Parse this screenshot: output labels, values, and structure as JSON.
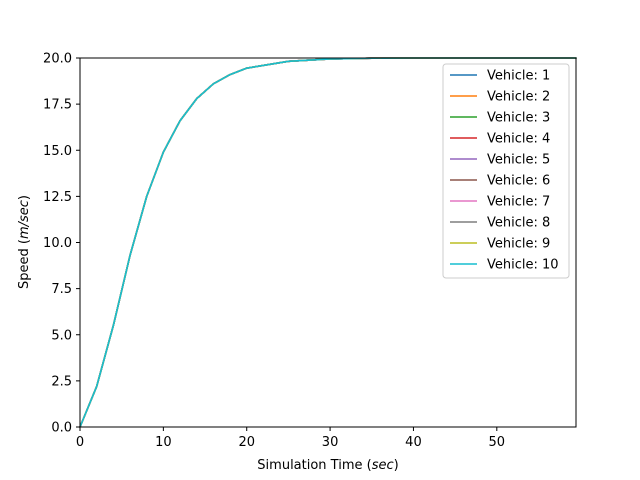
{
  "chart_data": {
    "type": "line",
    "title": "",
    "xlabel_prefix": "Simulation Time (",
    "xlabel_unit": "sec",
    "xlabel_suffix": ")",
    "ylabel_prefix": "Speed (",
    "ylabel_unit": "m/sec",
    "ylabel_suffix": ")",
    "xlim": [
      0,
      59.5
    ],
    "ylim": [
      0,
      20
    ],
    "xticks": [
      0,
      10,
      20,
      30,
      40,
      50
    ],
    "xtick_labels": [
      "0",
      "10",
      "20",
      "30",
      "40",
      "50"
    ],
    "yticks": [
      0,
      2.5,
      5,
      7.5,
      10,
      12.5,
      15,
      17.5,
      20
    ],
    "ytick_labels": [
      "0.0",
      "2.5",
      "5.0",
      "7.5",
      "10.0",
      "12.5",
      "15.0",
      "17.5",
      "20.0"
    ],
    "grid": false,
    "legend_position": "top-right",
    "x": [
      0,
      2,
      4,
      6,
      8,
      10,
      12,
      14,
      16,
      18,
      20,
      25,
      30,
      35,
      40,
      45,
      50,
      55,
      59.5
    ],
    "series": [
      {
        "name": "Vehicle: 1",
        "color": "#1f77b4",
        "values": [
          0,
          2.2,
          5.5,
          9.3,
          12.5,
          14.9,
          16.6,
          17.8,
          18.6,
          19.1,
          19.45,
          19.82,
          19.95,
          19.99,
          20,
          20,
          20,
          20,
          20
        ]
      },
      {
        "name": "Vehicle: 2",
        "color": "#ff7f0e",
        "values": [
          0,
          2.2,
          5.5,
          9.3,
          12.5,
          14.9,
          16.6,
          17.8,
          18.6,
          19.1,
          19.45,
          19.82,
          19.95,
          19.99,
          20,
          20,
          20,
          20,
          20
        ]
      },
      {
        "name": "Vehicle: 3",
        "color": "#2ca02c",
        "values": [
          0,
          2.2,
          5.5,
          9.3,
          12.5,
          14.9,
          16.6,
          17.8,
          18.6,
          19.1,
          19.45,
          19.82,
          19.95,
          19.99,
          20,
          20,
          20,
          20,
          20
        ]
      },
      {
        "name": "Vehicle: 4",
        "color": "#d62728",
        "values": [
          0,
          2.2,
          5.5,
          9.3,
          12.5,
          14.9,
          16.6,
          17.8,
          18.6,
          19.1,
          19.45,
          19.82,
          19.95,
          19.99,
          20,
          20,
          20,
          20,
          20
        ]
      },
      {
        "name": "Vehicle: 5",
        "color": "#9467bd",
        "values": [
          0,
          2.2,
          5.5,
          9.3,
          12.5,
          14.9,
          16.6,
          17.8,
          18.6,
          19.1,
          19.45,
          19.82,
          19.95,
          19.99,
          20,
          20,
          20,
          20,
          20
        ]
      },
      {
        "name": "Vehicle: 6",
        "color": "#8c564b",
        "values": [
          0,
          2.2,
          5.5,
          9.3,
          12.5,
          14.9,
          16.6,
          17.8,
          18.6,
          19.1,
          19.45,
          19.82,
          19.95,
          19.99,
          20,
          20,
          20,
          20,
          20
        ]
      },
      {
        "name": "Vehicle: 7",
        "color": "#e377c2",
        "values": [
          0,
          2.2,
          5.5,
          9.3,
          12.5,
          14.9,
          16.6,
          17.8,
          18.6,
          19.1,
          19.45,
          19.82,
          19.95,
          19.99,
          20,
          20,
          20,
          20,
          20
        ]
      },
      {
        "name": "Vehicle: 8",
        "color": "#7f7f7f",
        "values": [
          0,
          2.2,
          5.5,
          9.3,
          12.5,
          14.9,
          16.6,
          17.8,
          18.6,
          19.1,
          19.45,
          19.82,
          19.95,
          19.99,
          20,
          20,
          20,
          20,
          20
        ]
      },
      {
        "name": "Vehicle: 9",
        "color": "#bcbd22",
        "values": [
          0,
          2.2,
          5.5,
          9.3,
          12.5,
          14.9,
          16.6,
          17.8,
          18.6,
          19.1,
          19.45,
          19.82,
          19.95,
          19.99,
          20,
          20,
          20,
          20,
          20
        ]
      },
      {
        "name": "Vehicle: 10",
        "color": "#17becf",
        "values": [
          0,
          2.2,
          5.5,
          9.3,
          12.5,
          14.9,
          16.6,
          17.8,
          18.6,
          19.1,
          19.45,
          19.82,
          19.95,
          19.99,
          20,
          20,
          20,
          20,
          20
        ]
      }
    ]
  }
}
